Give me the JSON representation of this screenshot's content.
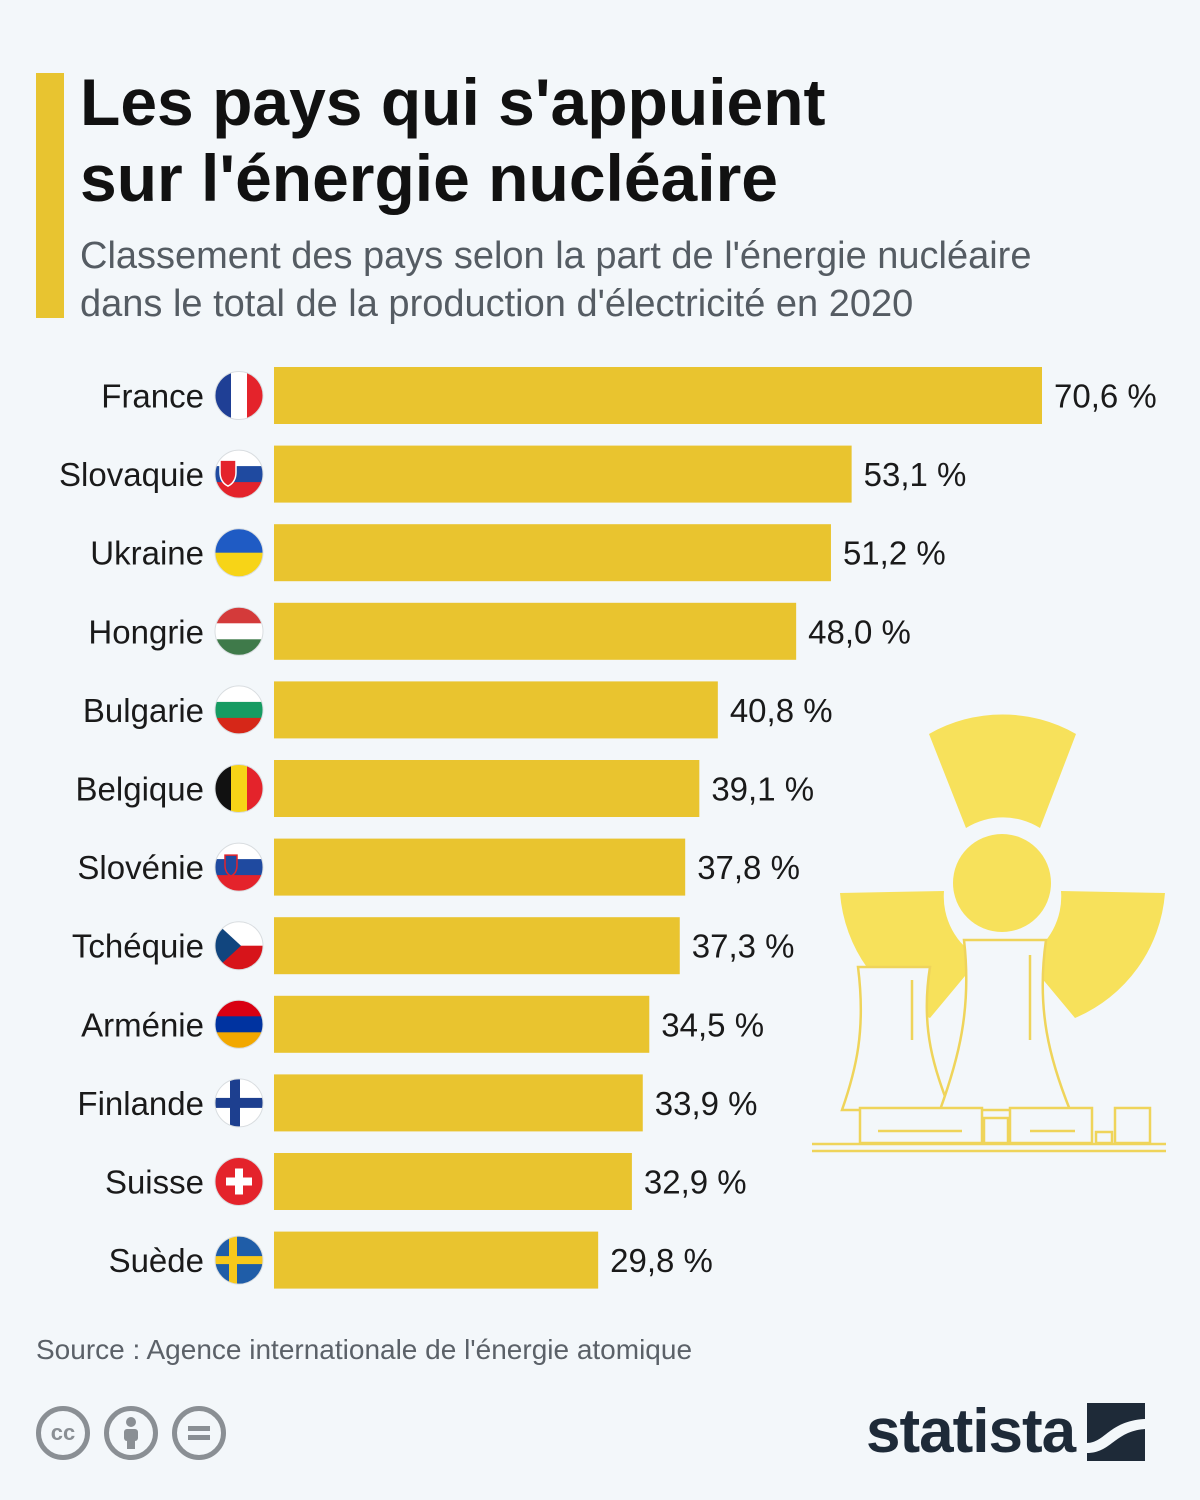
{
  "header": {
    "title_line1": "Les pays qui s'appuient",
    "title_line2": "sur l'énergie nucléaire",
    "subtitle_line1": "Classement des pays selon la part de l'énergie nucléaire",
    "subtitle_line2": "dans le total de la production d'électricité en 2020"
  },
  "colors": {
    "bar": "#e9c42f",
    "accent": "#e8c430",
    "illustration": "#f7e15b"
  },
  "chart_data": {
    "type": "bar",
    "orientation": "horizontal",
    "categories": [
      "France",
      "Slovaquie",
      "Ukraine",
      "Hongrie",
      "Bulgarie",
      "Belgique",
      "Slovénie",
      "Tchéquie",
      "Arménie",
      "Finlande",
      "Suisse",
      "Suède"
    ],
    "values": [
      70.6,
      53.1,
      51.2,
      48.0,
      40.8,
      39.1,
      37.8,
      37.3,
      34.5,
      33.9,
      32.9,
      29.8
    ],
    "value_labels": [
      "70,6 %",
      "53,1 %",
      "51,2 %",
      "48,0 %",
      "40,8 %",
      "39,1 %",
      "37,8 %",
      "37,3 %",
      "34,5 %",
      "33,9 %",
      "32,9 %",
      "29,8 %"
    ],
    "xlim": [
      0,
      70.6
    ],
    "grid": false,
    "legend": "none"
  },
  "footer": {
    "source": "Source : Agence internationale de l'énergie atomique",
    "license_icons": [
      "cc-icon",
      "attribution-icon",
      "no-derivatives-icon"
    ],
    "brand": "statista"
  }
}
